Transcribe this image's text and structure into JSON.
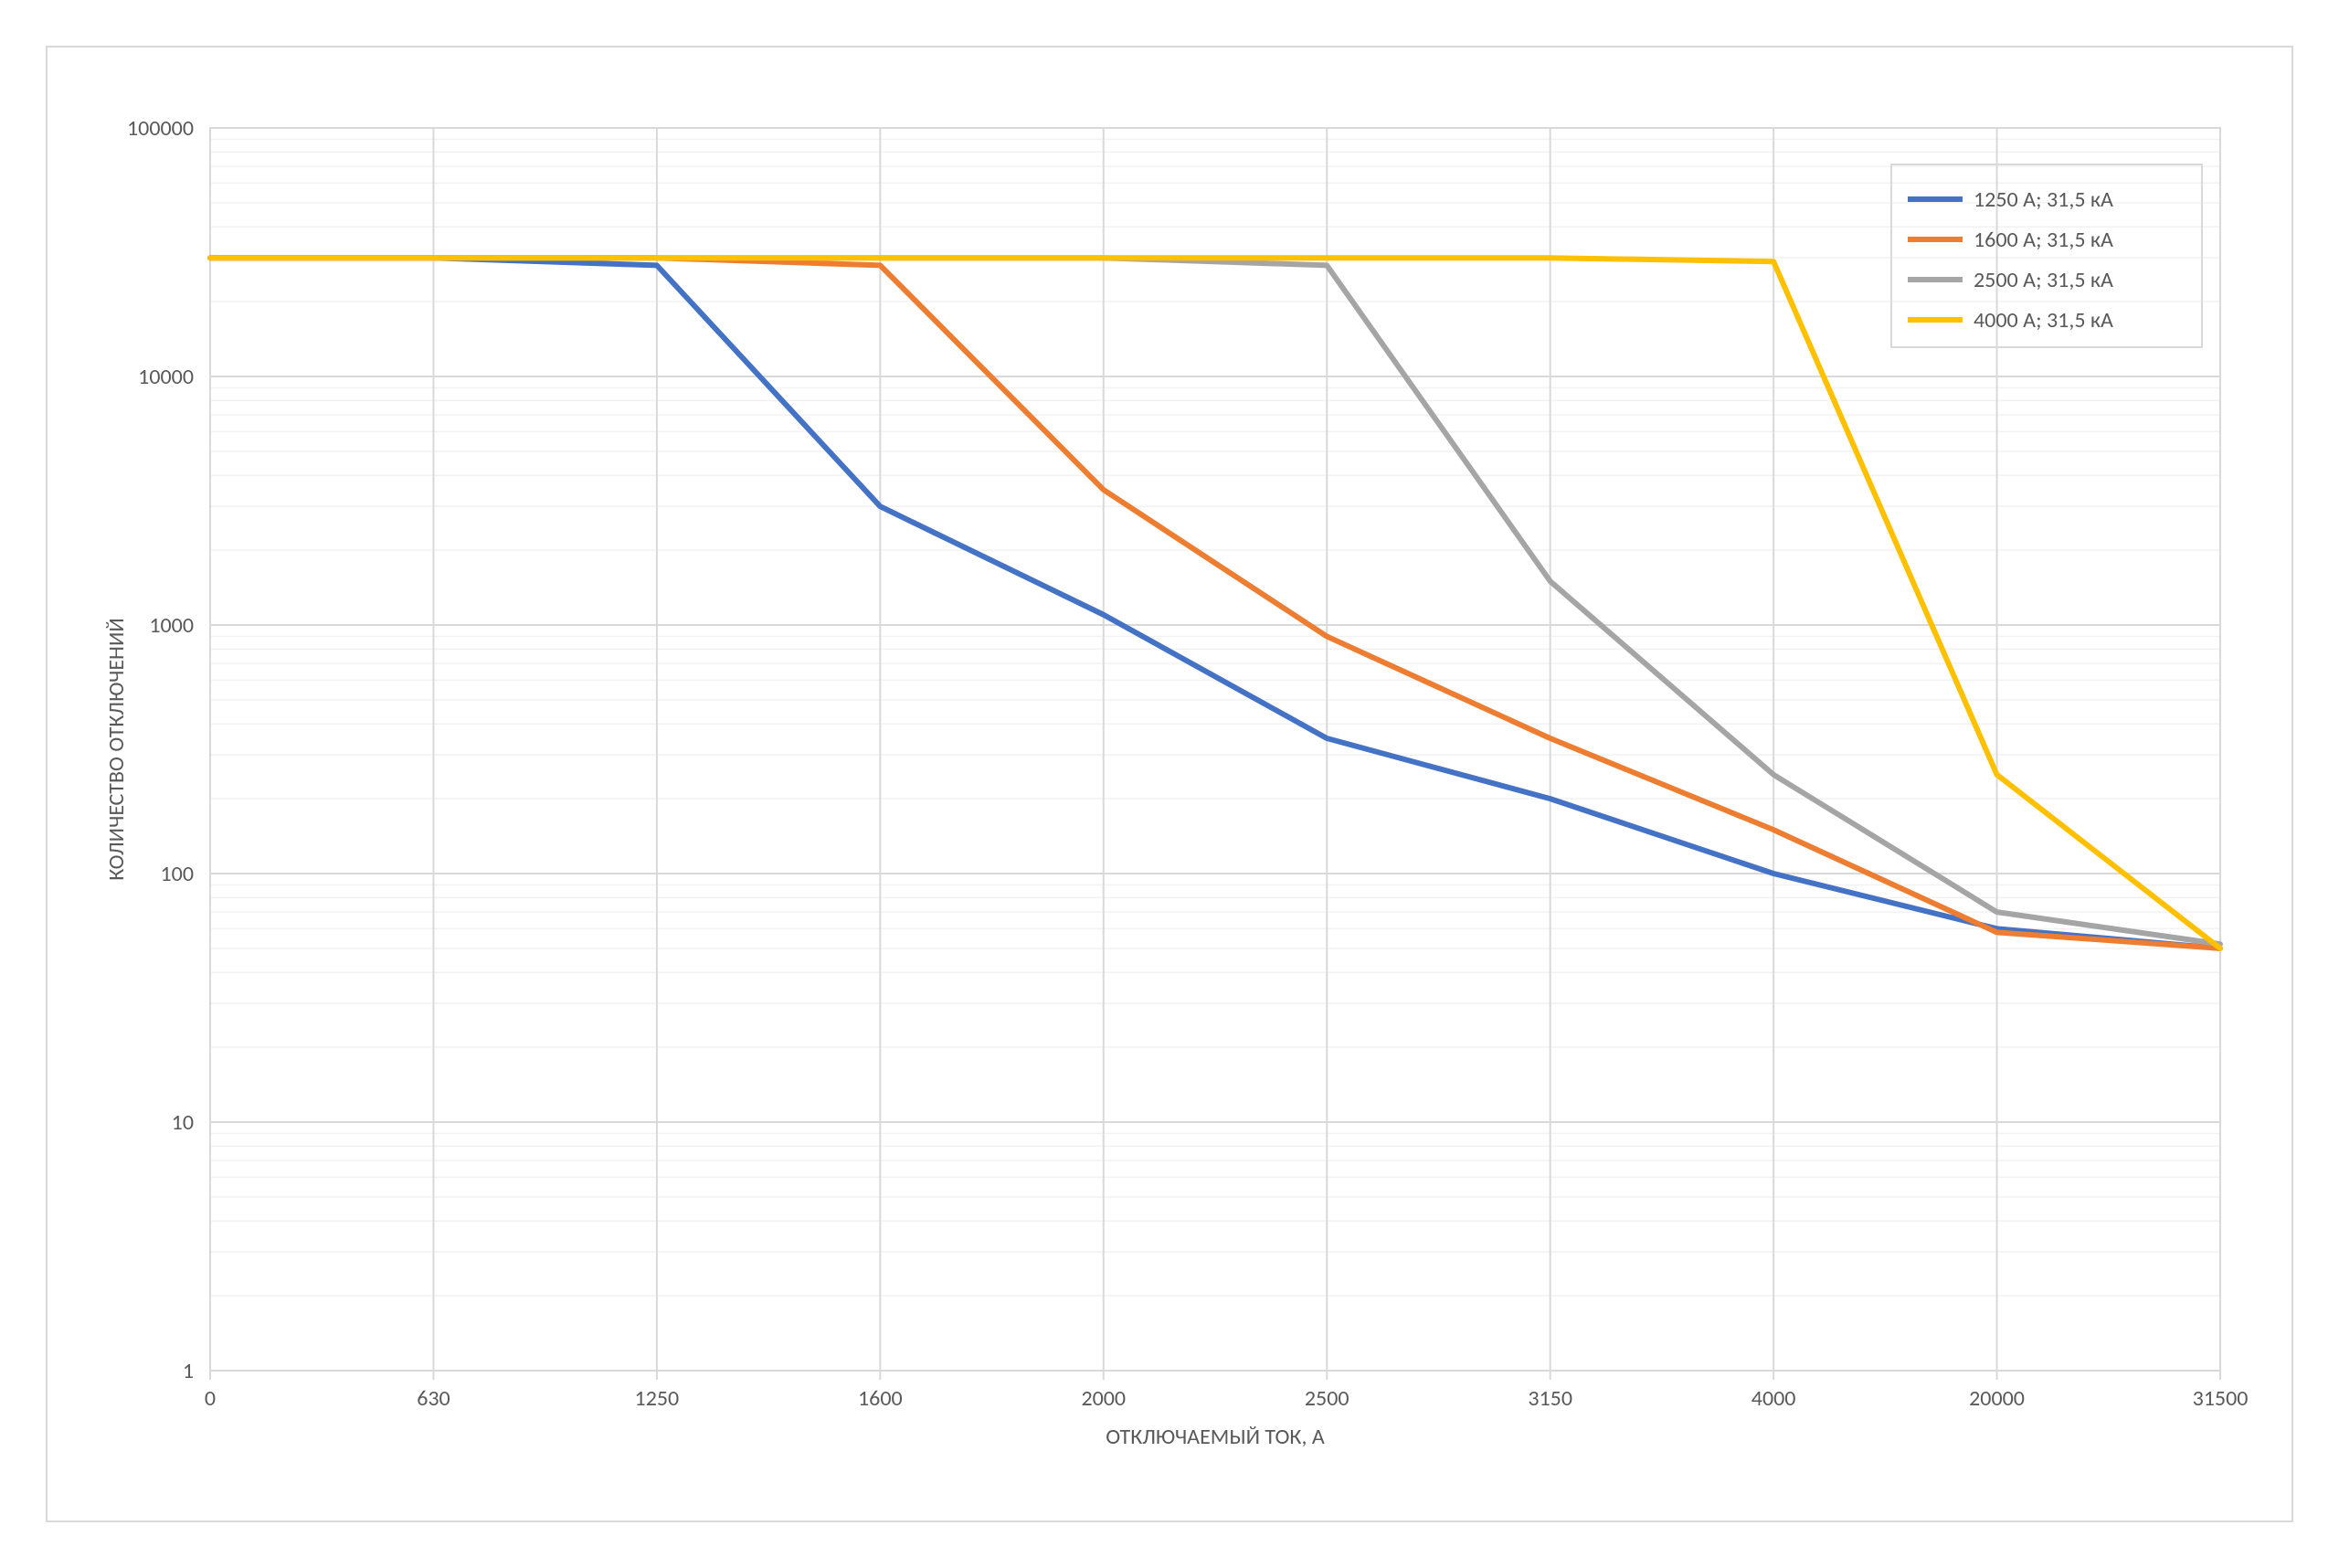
{
  "chart": {
    "type": "line",
    "background_color": "#ffffff",
    "plot_border_color": "#d9d9d9",
    "outer_border_color": "#d9d9d9",
    "grid_major_color": "#d9d9d9",
    "grid_minor_color": "#f2f2f2",
    "axis_label_color": "#595959",
    "tick_label_color": "#595959",
    "tick_fontsize": 24,
    "axis_label_fontsize": 24,
    "legend_fontsize": 24,
    "line_width": 6,
    "x_axis": {
      "label": "ОТКЛЮЧАЕМЫЙ ТОК, А",
      "ticks": [
        0,
        630,
        1250,
        1600,
        2000,
        2500,
        3150,
        4000,
        20000,
        31500
      ],
      "tick_labels": [
        "0",
        "630",
        "1250",
        "1600",
        "2000",
        "2500",
        "3150",
        "4000",
        "20000",
        "31500"
      ]
    },
    "y_axis": {
      "label": "КОЛИЧЕСТВО ОТКЛЮЧЕНИЙ",
      "scale": "log",
      "min": 1,
      "max": 100000,
      "ticks": [
        1,
        10,
        100,
        1000,
        10000,
        100000
      ],
      "tick_labels": [
        "1",
        "10",
        "100",
        "1000",
        "10000",
        "100000"
      ]
    },
    "series": [
      {
        "name": "1250 А; 31,5 кА",
        "color": "#4472c4",
        "x": [
          0,
          630,
          1250,
          1600,
          2000,
          2500,
          3150,
          4000,
          20000,
          31500
        ],
        "y": [
          30000,
          30000,
          28000,
          3000,
          1100,
          350,
          200,
          100,
          60,
          50
        ]
      },
      {
        "name": "1600 А; 31,5 кА",
        "color": "#ed7d31",
        "x": [
          0,
          630,
          1250,
          1600,
          2000,
          2500,
          3150,
          4000,
          20000,
          31500
        ],
        "y": [
          30000,
          30000,
          30000,
          28000,
          3500,
          900,
          350,
          150,
          58,
          50
        ]
      },
      {
        "name": "2500 А; 31,5 кА",
        "color": "#a5a5a5",
        "x": [
          0,
          630,
          1250,
          1600,
          2000,
          2500,
          3150,
          4000,
          20000,
          31500
        ],
        "y": [
          30000,
          30000,
          30000,
          30000,
          30000,
          28000,
          1500,
          250,
          70,
          52
        ]
      },
      {
        "name": "4000 А; 31,5 кА",
        "color": "#ffc000",
        "x": [
          0,
          630,
          1250,
          1600,
          2000,
          2500,
          3150,
          4000,
          20000,
          31500
        ],
        "y": [
          30000,
          30000,
          30000,
          30000,
          30000,
          30000,
          30000,
          29000,
          250,
          50
        ]
      }
    ],
    "legend": {
      "position": "top-right",
      "items": [
        {
          "label": "1250 А; 31,5 кА",
          "color": "#4472c4"
        },
        {
          "label": "1600 А; 31,5 кА",
          "color": "#ed7d31"
        },
        {
          "label": "2500 А; 31,5 кА",
          "color": "#a5a5a5"
        },
        {
          "label": "4000 А; 31,5 кА",
          "color": "#ffc000"
        }
      ]
    }
  }
}
